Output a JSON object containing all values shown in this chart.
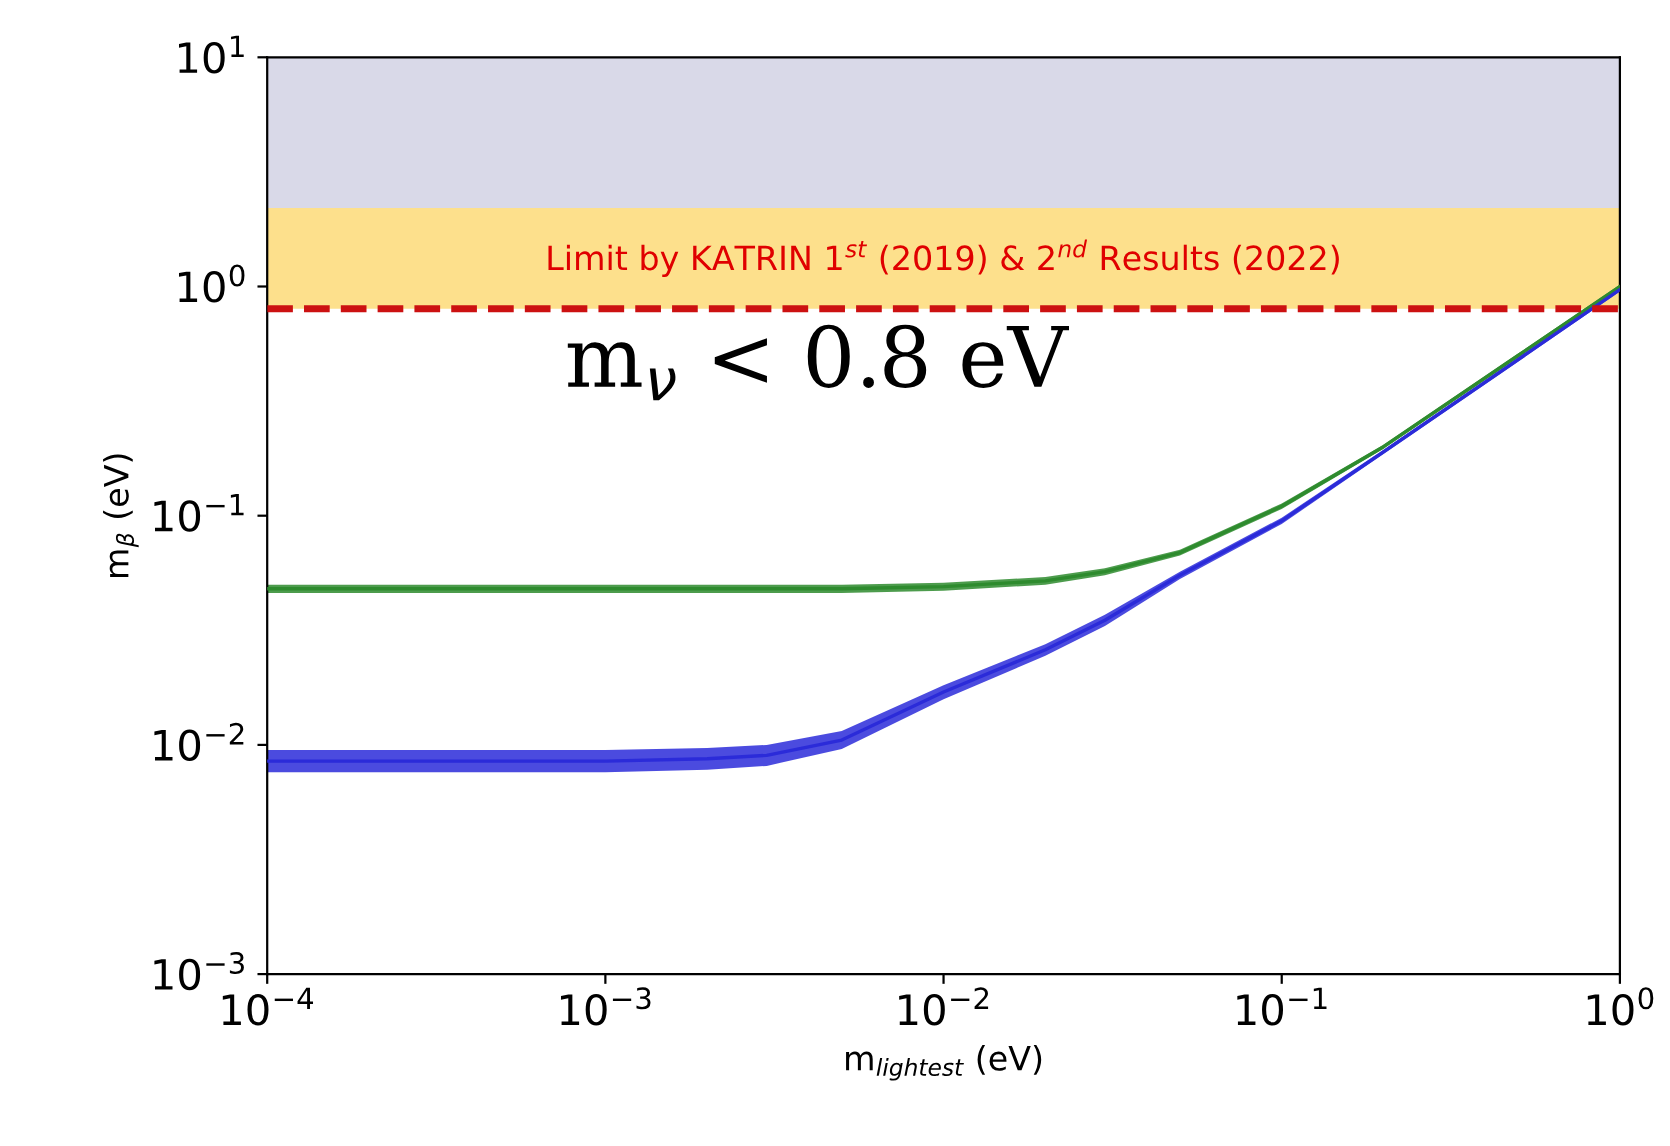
{
  "chart_data": {
    "type": "line",
    "xlabel": "m$_{lightest}$ (eV)",
    "ylabel": "m$_{β}$ (eV)",
    "log": "xy",
    "xlim": [
      0.0001,
      1
    ],
    "ylim": [
      0.001,
      10
    ],
    "xticks": [
      {
        "value": 0.0001,
        "label": "10$^{−4}$"
      },
      {
        "value": 0.001,
        "label": "10$^{−3}$"
      },
      {
        "value": 0.01,
        "label": "10$^{−2}$"
      },
      {
        "value": 0.1,
        "label": "10$^{−1}$"
      },
      {
        "value": 1,
        "label": "10$^{0}$"
      }
    ],
    "yticks": [
      {
        "value": 0.001,
        "label": "10$^{−3}$"
      },
      {
        "value": 0.01,
        "label": "10$^{−2}$"
      },
      {
        "value": 0.1,
        "label": "10$^{−1}$"
      },
      {
        "value": 1,
        "label": "10$^{0}$"
      },
      {
        "value": 10,
        "label": "10$^{1}$"
      }
    ],
    "x": [
      0.0001,
      0.001,
      0.002,
      0.003,
      0.005,
      0.01,
      0.02,
      0.03,
      0.05,
      0.1,
      0.2,
      0.5,
      1
    ],
    "series": [
      {
        "color": "#2e8b2e",
        "values": [
          0.048,
          0.048,
          0.048,
          0.048,
          0.048,
          0.049,
          0.052,
          0.057,
          0.069,
          0.11,
          0.2,
          0.5,
          1.0
        ],
        "lower": [
          0.046,
          0.046,
          0.046,
          0.046,
          0.046,
          0.047,
          0.05,
          0.055,
          0.067,
          0.107,
          0.196,
          0.49,
          0.98
        ],
        "upper": [
          0.05,
          0.05,
          0.05,
          0.05,
          0.05,
          0.051,
          0.054,
          0.059,
          0.071,
          0.113,
          0.204,
          0.51,
          1.02
        ]
      },
      {
        "color": "#2b2bd9",
        "values": [
          0.0085,
          0.0085,
          0.0087,
          0.009,
          0.0105,
          0.017,
          0.026,
          0.035,
          0.055,
          0.095,
          0.19,
          0.48,
          0.97
        ],
        "lower": [
          0.0076,
          0.0076,
          0.0078,
          0.0081,
          0.0096,
          0.0158,
          0.0245,
          0.033,
          0.053,
          0.092,
          0.186,
          0.47,
          0.95
        ],
        "upper": [
          0.0095,
          0.0095,
          0.0097,
          0.01,
          0.0115,
          0.0182,
          0.0275,
          0.037,
          0.057,
          0.098,
          0.194,
          0.49,
          0.99
        ]
      }
    ],
    "bands": [
      {
        "axis": "y",
        "from": 2.2,
        "to": 10,
        "color": "#d9d9e8"
      },
      {
        "axis": "y",
        "from": 0.8,
        "to": 2.2,
        "color": "#fde08c",
        "label": "Limit by KATRIN 1$^{st}$ (2019) & 2$^{nd}$ Results (2022)"
      }
    ],
    "ref_lines": [
      {
        "axis": "y",
        "value": 0.8,
        "color": "#cc1111",
        "line_style": "dashed",
        "label": "m$_{ν}$ < 0.8 eV"
      }
    ],
    "grid": false
  }
}
